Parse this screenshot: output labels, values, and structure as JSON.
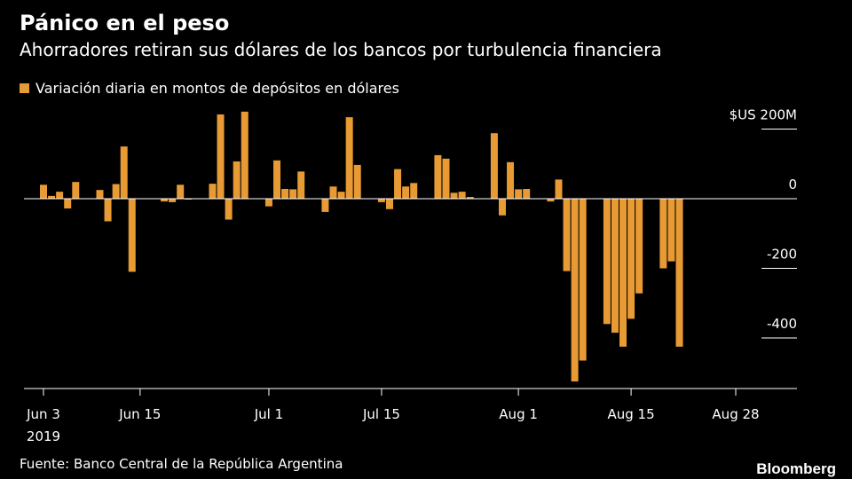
{
  "title": "Pánico en el peso",
  "subtitle": "Ahorradores retiran sus dólares de los bancos por turbulencia financiera",
  "legend": {
    "label": "Variación diaria en montos de depósitos en dólares"
  },
  "source": "Fuente: Banco Central de la República Argentina",
  "brand": "Bloomberg",
  "colors": {
    "bar": "#E89A34",
    "background": "#000000",
    "text": "#FFFFFF",
    "axis": "#FFFFFF"
  },
  "chart_data": {
    "type": "bar",
    "ylim": [
      -540,
      230
    ],
    "unit_label": "$US",
    "y_ticks": [
      {
        "value": 200,
        "label": "$US 200M"
      },
      {
        "value": 0,
        "label": "0"
      },
      {
        "value": -200,
        "label": "-200"
      },
      {
        "value": -400,
        "label": "-400"
      }
    ],
    "x_ticks": [
      {
        "date": "2019-06-03",
        "label": "Jun 3",
        "sublabel": "2019"
      },
      {
        "date": "2019-06-15",
        "label": "Jun 15"
      },
      {
        "date": "2019-07-01",
        "label": "Jul 1"
      },
      {
        "date": "2019-07-15",
        "label": "Jul 15"
      },
      {
        "date": "2019-08-01",
        "label": "Aug 1"
      },
      {
        "date": "2019-08-15",
        "label": "Aug 15"
      },
      {
        "date": "2019-08-28",
        "label": "Aug 28"
      }
    ],
    "series": [
      {
        "data": [
          [
            "2019-06-03",
            40
          ],
          [
            "2019-06-04",
            8
          ],
          [
            "2019-06-05",
            20
          ],
          [
            "2019-06-06",
            -28
          ],
          [
            "2019-06-07",
            48
          ],
          [
            "2019-06-10",
            25
          ],
          [
            "2019-06-11",
            -65
          ],
          [
            "2019-06-12",
            42
          ],
          [
            "2019-06-13",
            150
          ],
          [
            "2019-06-14",
            -210
          ],
          [
            "2019-06-18",
            -8
          ],
          [
            "2019-06-19",
            -10
          ],
          [
            "2019-06-20",
            40
          ],
          [
            "2019-06-21",
            0
          ],
          [
            "2019-06-24",
            43
          ],
          [
            "2019-06-25",
            242
          ],
          [
            "2019-06-26",
            -60
          ],
          [
            "2019-06-27",
            107
          ],
          [
            "2019-06-28",
            250
          ],
          [
            "2019-07-01",
            -22
          ],
          [
            "2019-07-02",
            110
          ],
          [
            "2019-07-03",
            28
          ],
          [
            "2019-07-04",
            27
          ],
          [
            "2019-07-05",
            78
          ],
          [
            "2019-07-08",
            -38
          ],
          [
            "2019-07-09",
            35
          ],
          [
            "2019-07-10",
            20
          ],
          [
            "2019-07-11",
            234
          ],
          [
            "2019-07-12",
            97
          ],
          [
            "2019-07-15",
            -10
          ],
          [
            "2019-07-16",
            -30
          ],
          [
            "2019-07-17",
            85
          ],
          [
            "2019-07-18",
            35
          ],
          [
            "2019-07-19",
            45
          ],
          [
            "2019-07-22",
            125
          ],
          [
            "2019-07-23",
            115
          ],
          [
            "2019-07-24",
            17
          ],
          [
            "2019-07-25",
            20
          ],
          [
            "2019-07-26",
            5
          ],
          [
            "2019-07-29",
            188
          ],
          [
            "2019-07-30",
            -48
          ],
          [
            "2019-07-31",
            105
          ],
          [
            "2019-08-01",
            27
          ],
          [
            "2019-08-02",
            28
          ],
          [
            "2019-08-05",
            -8
          ],
          [
            "2019-08-06",
            55
          ],
          [
            "2019-08-07",
            -208
          ],
          [
            "2019-08-08",
            -525
          ],
          [
            "2019-08-09",
            -465
          ],
          [
            "2019-08-12",
            -360
          ],
          [
            "2019-08-13",
            -385
          ],
          [
            "2019-08-14",
            -425
          ],
          [
            "2019-08-15",
            -345
          ],
          [
            "2019-08-16",
            -272
          ],
          [
            "2019-08-19",
            -200
          ],
          [
            "2019-08-20",
            -180
          ],
          [
            "2019-08-21",
            -425
          ]
        ]
      }
    ]
  }
}
